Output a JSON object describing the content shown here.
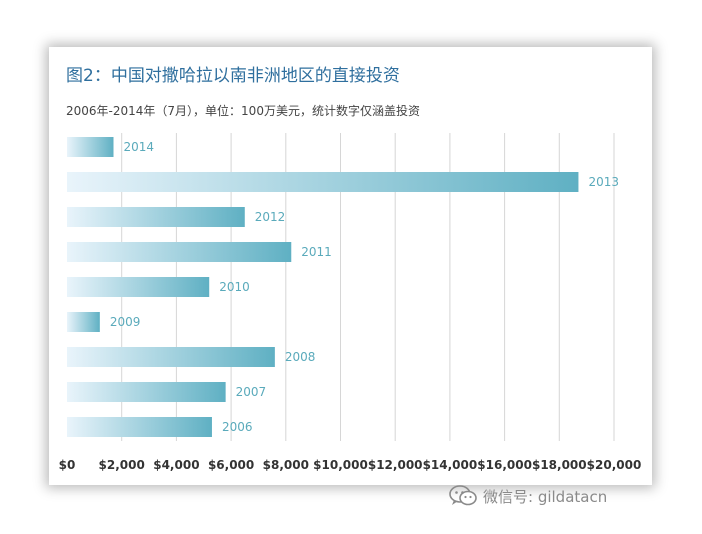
{
  "title": "图2：中国对撒哈拉以南非洲地区的直接投资",
  "subtitle": "2006年-2014年（7月），单位：100万美元，统计数字仅涵盖投资",
  "watermark": {
    "text": "微信号: gildatacn",
    "icon": "wechat-icon"
  },
  "colors": {
    "bar_start": "#e9f4fb",
    "bar_end": "#5fb0c3",
    "label": "#5aaabb",
    "grid": "#d6d6d6",
    "title": "#2f6f9e"
  },
  "chart_data": {
    "type": "bar",
    "orientation": "horizontal",
    "categories": [
      "2014",
      "2013",
      "2012",
      "2011",
      "2010",
      "2009",
      "2008",
      "2007",
      "2006"
    ],
    "values": [
      1700,
      18700,
      6500,
      8200,
      5200,
      1200,
      7600,
      5800,
      5300
    ],
    "xlim": [
      0,
      20000
    ],
    "xticks": [
      0,
      2000,
      4000,
      6000,
      8000,
      10000,
      12000,
      14000,
      16000,
      18000,
      20000
    ],
    "xtick_labels": [
      "$0",
      "$2,000",
      "$4,000",
      "$6,000",
      "$8,000",
      "$10,000",
      "$12,000",
      "$14,000",
      "$16,000",
      "$18,000",
      "$20,000"
    ],
    "grid": true,
    "legend": "none"
  }
}
